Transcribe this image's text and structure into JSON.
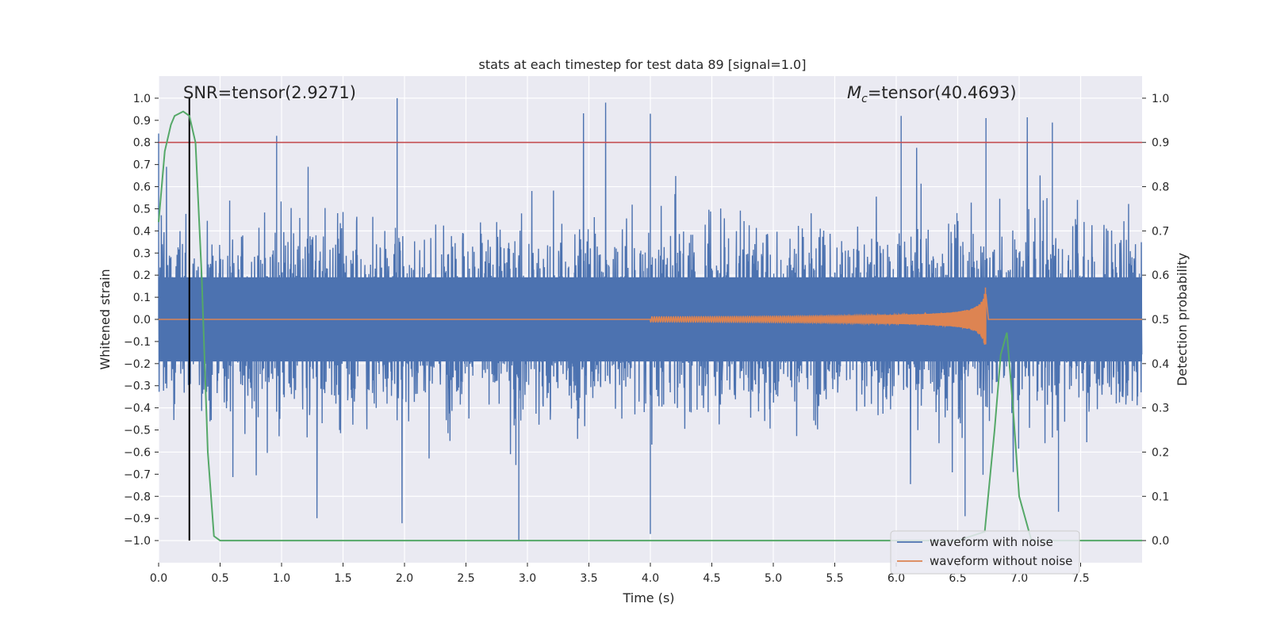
{
  "chart_data": {
    "type": "line",
    "title": "stats at each timestep for test data 89 [signal=1.0]",
    "xlabel": "Time (s)",
    "ylabel": "Whitened strain",
    "ylabel_right": "Detection probability",
    "xlim": [
      0.0,
      8.0
    ],
    "ylim": [
      -1.1,
      1.1
    ],
    "ylim_right": [
      -0.05,
      1.05
    ],
    "x_ticks": [
      "0.0",
      "0.5",
      "1.0",
      "1.5",
      "2.0",
      "2.5",
      "3.0",
      "3.5",
      "4.0",
      "4.5",
      "5.0",
      "5.5",
      "6.0",
      "6.5",
      "7.0",
      "7.5"
    ],
    "y_ticks": [
      "1.0",
      "0.9",
      "0.8",
      "0.7",
      "0.6",
      "0.5",
      "0.4",
      "0.3",
      "0.2",
      "0.1",
      "0.0",
      "−0.1",
      "−0.2",
      "−0.3",
      "−0.4",
      "−0.5",
      "−0.6",
      "−0.7",
      "−0.8",
      "−0.9",
      "−1.0"
    ],
    "y_ticks_right": [
      "1.0",
      "0.9",
      "0.8",
      "0.7",
      "0.6",
      "0.5",
      "0.4",
      "0.3",
      "0.2",
      "0.1",
      "0.0"
    ],
    "annotations": {
      "snr": "SNR=tensor(2.9271)",
      "mc_symbol": "M",
      "mc_subscript": "c",
      "mc_rest": "=tensor(40.4693)"
    },
    "threshold_line": {
      "y_right": 0.9,
      "color": "#c44e52"
    },
    "marker_line": {
      "x": 0.25,
      "color": "#000000"
    },
    "legend": {
      "placement": "lower-right",
      "entries": [
        "waveform with noise",
        "waveform without noise"
      ]
    },
    "colors": {
      "noise": "#4c72b0",
      "clean": "#dd8452",
      "probability": "#55a868",
      "background": "#eaeaf2",
      "grid": "#ffffff"
    },
    "series": [
      {
        "name": "waveform with noise",
        "axis": "left",
        "description": "noisy whitened strain, roughly uniform across 0-8 s",
        "peak_spikes": [
          [
            0.0,
            0.84
          ],
          [
            0.96,
            0.83
          ],
          [
            1.94,
            1.0
          ],
          [
            4.0,
            0.93
          ],
          [
            6.04,
            0.92
          ],
          [
            6.73,
            0.91
          ],
          [
            7.27,
            0.89
          ],
          [
            2.93,
            -1.0
          ],
          [
            4.0,
            -0.97
          ],
          [
            6.56,
            -0.89
          ],
          [
            7.32,
            -0.87
          ]
        ]
      },
      {
        "name": "waveform without noise",
        "axis": "left",
        "description": "chirp signal growing to merger near 6.73 s",
        "points": [
          [
            4.0,
            0.0
          ],
          [
            5.0,
            0.005
          ],
          [
            5.5,
            0.01
          ],
          [
            6.0,
            0.02
          ],
          [
            6.3,
            0.04
          ],
          [
            6.5,
            0.08
          ],
          [
            6.6,
            0.12
          ],
          [
            6.7,
            0.19
          ],
          [
            6.73,
            -0.18
          ],
          [
            6.75,
            0.0
          ]
        ]
      },
      {
        "name": "detection probability",
        "axis": "right",
        "x": [
          0.0,
          0.05,
          0.1,
          0.13,
          0.2,
          0.25,
          0.3,
          0.35,
          0.4,
          0.45,
          0.5,
          0.55,
          1.0,
          3.0,
          5.0,
          6.0,
          6.5,
          6.72,
          6.8,
          6.85,
          6.9,
          6.95,
          7.0,
          7.1,
          7.5,
          8.0
        ],
        "values": [
          0.72,
          0.88,
          0.94,
          0.96,
          0.97,
          0.96,
          0.9,
          0.6,
          0.2,
          0.01,
          0.0,
          0.0,
          0.0,
          0.0,
          0.0,
          0.0,
          0.0,
          0.02,
          0.25,
          0.42,
          0.47,
          0.3,
          0.1,
          0.0,
          0.0,
          0.0
        ]
      }
    ]
  }
}
